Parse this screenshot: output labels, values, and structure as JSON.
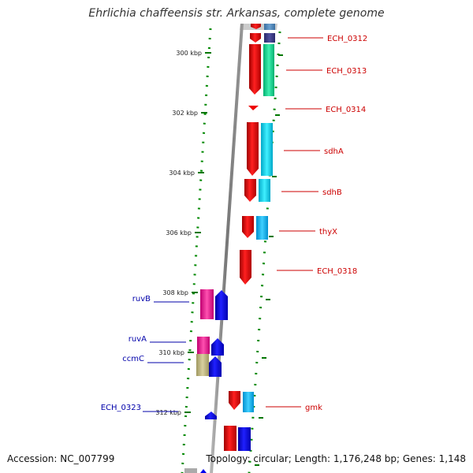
{
  "title": "Ehrlichia chaffeensis str. Arkansas, complete genome",
  "footer": {
    "accession": "Accession: NC_007799",
    "summary": "Topology: circular; Length: 1,176,248 bp; Genes: 1,148"
  },
  "ruler": {
    "ticks": [
      "300 kbp",
      "302 kbp",
      "304 kbp",
      "306 kbp",
      "308 kbp",
      "310 kbp",
      "312 kbp"
    ]
  },
  "genes": [
    {
      "label": "ECH_0312",
      "strand": "right",
      "color": "#cc0000"
    },
    {
      "label": "ECH_0313",
      "strand": "right",
      "color": "#cc0000"
    },
    {
      "label": "ECH_0314",
      "strand": "right",
      "color": "#cc0000"
    },
    {
      "label": "sdhA",
      "strand": "right",
      "color": "#cc0000"
    },
    {
      "label": "sdhB",
      "strand": "right",
      "color": "#cc0000"
    },
    {
      "label": "thyX",
      "strand": "right",
      "color": "#cc0000"
    },
    {
      "label": "ECH_0318",
      "strand": "right",
      "color": "#cc0000"
    },
    {
      "label": "gmk",
      "strand": "right",
      "color": "#cc0000"
    },
    {
      "label": "ruvB",
      "strand": "left",
      "color": "#0000aa"
    },
    {
      "label": "ruvA",
      "strand": "left",
      "color": "#0000aa"
    },
    {
      "label": "ccmC",
      "strand": "left",
      "color": "#0000aa"
    },
    {
      "label": "ECH_0323",
      "strand": "left",
      "color": "#0000aa"
    }
  ],
  "colors": {
    "forward_gene": "#ee0000",
    "reverse_gene": "#0000ee",
    "tick": "#007700",
    "backbone": "#888888"
  }
}
